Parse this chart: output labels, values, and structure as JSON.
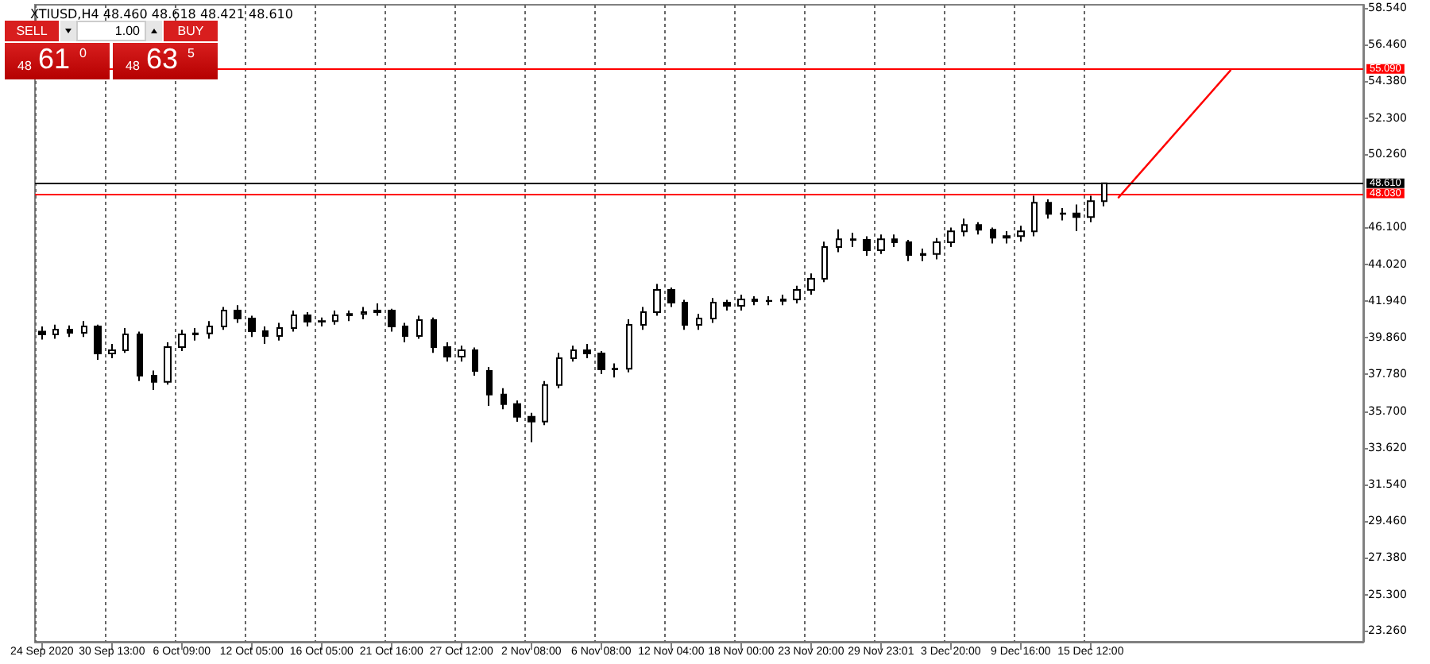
{
  "chart_data": {
    "type": "candlestick",
    "title": "XTIUSD,H4 48.460 48.618 48.421 48.610",
    "annotations": [
      "SELL",
      "1.00",
      "BUY",
      "48",
      "61",
      "0",
      "48",
      "63",
      "5"
    ],
    "categories": [
      "24 Sep 2020",
      null,
      null,
      null,
      null,
      "30 Sep 13:00",
      null,
      null,
      null,
      null,
      "6 Oct 09:00",
      null,
      null,
      null,
      null,
      "12 Oct 05:00",
      null,
      null,
      null,
      null,
      "16 Oct 05:00",
      null,
      null,
      null,
      null,
      "21 Oct 16:00",
      null,
      null,
      null,
      null,
      "27 Oct 12:00",
      null,
      null,
      null,
      null,
      "2 Nov 08:00",
      null,
      null,
      null,
      null,
      "6 Nov 08:00",
      null,
      null,
      null,
      null,
      "12 Nov 04:00",
      null,
      null,
      null,
      null,
      "18 Nov 00:00",
      null,
      null,
      null,
      null,
      "23 Nov 20:00",
      null,
      null,
      null,
      null,
      "29 Nov 23:01",
      null,
      null,
      null,
      null,
      "3 Dec 20:00",
      null,
      null,
      null,
      null,
      "9 Dec 16:00",
      null,
      null,
      null,
      null,
      "15 Dec 12:00",
      null,
      null,
      null,
      null,
      null,
      null,
      null,
      null,
      null,
      null,
      null,
      null,
      null,
      null,
      null,
      null,
      null,
      null,
      null
    ],
    "series": [
      {
        "type": "candlestick",
        "color": "#000000",
        "ohlc": [
          [
            40.2,
            40.5,
            39.75,
            40.05
          ],
          [
            40.05,
            40.6,
            39.8,
            40.32
          ],
          [
            40.32,
            40.55,
            39.9,
            40.14
          ],
          [
            40.14,
            40.8,
            39.9,
            40.5
          ],
          [
            40.5,
            40.6,
            38.6,
            38.97
          ],
          [
            38.97,
            39.5,
            38.7,
            39.15
          ],
          [
            39.15,
            40.4,
            39.0,
            40.05
          ],
          [
            40.05,
            40.2,
            37.4,
            37.71
          ],
          [
            37.71,
            38.0,
            36.9,
            37.36
          ],
          [
            37.36,
            39.6,
            37.2,
            39.33
          ],
          [
            39.33,
            40.3,
            39.1,
            40.05
          ],
          [
            40.05,
            40.4,
            39.7,
            40.1
          ],
          [
            40.1,
            40.8,
            39.8,
            40.5
          ],
          [
            40.5,
            41.6,
            40.3,
            41.4
          ],
          [
            41.4,
            41.7,
            40.7,
            40.95
          ],
          [
            40.95,
            41.1,
            39.9,
            40.23
          ],
          [
            40.23,
            40.5,
            39.5,
            39.96
          ],
          [
            39.96,
            40.7,
            39.7,
            40.41
          ],
          [
            40.41,
            41.4,
            40.2,
            41.13
          ],
          [
            41.13,
            41.3,
            40.5,
            40.77
          ],
          [
            40.77,
            41.0,
            40.5,
            40.8
          ],
          [
            40.8,
            41.4,
            40.6,
            41.13
          ],
          [
            41.13,
            41.4,
            40.8,
            41.2
          ],
          [
            41.2,
            41.6,
            40.9,
            41.31
          ],
          [
            41.31,
            41.8,
            41.1,
            41.4
          ],
          [
            41.4,
            41.5,
            40.2,
            40.5
          ],
          [
            40.5,
            40.7,
            39.6,
            39.96
          ],
          [
            39.96,
            41.1,
            39.8,
            40.86
          ],
          [
            40.86,
            41.0,
            39.0,
            39.33
          ],
          [
            39.33,
            39.6,
            38.5,
            38.79
          ],
          [
            38.79,
            39.4,
            38.5,
            39.15
          ],
          [
            39.15,
            39.3,
            37.7,
            37.98
          ],
          [
            37.98,
            38.2,
            36.0,
            36.64
          ],
          [
            36.64,
            37.0,
            35.8,
            36.1
          ],
          [
            36.1,
            36.3,
            35.1,
            35.38
          ],
          [
            35.38,
            35.6,
            33.94,
            35.11
          ],
          [
            35.11,
            37.4,
            34.9,
            37.18
          ],
          [
            37.18,
            39.0,
            37.0,
            38.7
          ],
          [
            38.7,
            39.4,
            38.5,
            39.15
          ],
          [
            39.15,
            39.5,
            38.7,
            38.97
          ],
          [
            38.97,
            39.1,
            37.8,
            38.07
          ],
          [
            38.07,
            38.4,
            37.6,
            38.1
          ],
          [
            38.1,
            40.9,
            37.9,
            40.59
          ],
          [
            40.59,
            41.6,
            40.3,
            41.31
          ],
          [
            41.31,
            42.9,
            41.1,
            42.56
          ],
          [
            42.56,
            42.7,
            41.6,
            41.84
          ],
          [
            41.84,
            42.0,
            40.3,
            40.59
          ],
          [
            40.59,
            41.2,
            40.3,
            40.95
          ],
          [
            40.95,
            42.1,
            40.7,
            41.84
          ],
          [
            41.84,
            42.0,
            41.4,
            41.66
          ],
          [
            41.66,
            42.3,
            41.4,
            42.02
          ],
          [
            42.02,
            42.2,
            41.7,
            41.93
          ],
          [
            41.93,
            42.2,
            41.7,
            41.95
          ],
          [
            41.95,
            42.3,
            41.7,
            42.02
          ],
          [
            42.02,
            42.8,
            41.8,
            42.56
          ],
          [
            42.56,
            43.5,
            42.3,
            43.19
          ],
          [
            43.19,
            45.3,
            43.0,
            44.99
          ],
          [
            44.99,
            46.0,
            44.7,
            45.43
          ],
          [
            45.43,
            45.8,
            45.0,
            45.4
          ],
          [
            45.4,
            45.6,
            44.5,
            44.81
          ],
          [
            44.81,
            45.7,
            44.6,
            45.43
          ],
          [
            45.43,
            45.7,
            45.0,
            45.26
          ],
          [
            45.26,
            45.4,
            44.2,
            44.54
          ],
          [
            44.54,
            44.9,
            44.2,
            44.6
          ],
          [
            44.6,
            45.5,
            44.3,
            45.26
          ],
          [
            45.26,
            46.1,
            45.0,
            45.88
          ],
          [
            45.88,
            46.6,
            45.6,
            46.24
          ],
          [
            46.24,
            46.4,
            45.7,
            45.97
          ],
          [
            45.97,
            46.1,
            45.2,
            45.52
          ],
          [
            45.52,
            45.9,
            45.2,
            45.61
          ],
          [
            45.61,
            46.2,
            45.3,
            45.88
          ],
          [
            45.88,
            47.9,
            45.6,
            47.5
          ],
          [
            47.5,
            47.7,
            46.6,
            46.87
          ],
          [
            46.87,
            47.2,
            46.5,
            46.9
          ],
          [
            46.9,
            47.4,
            45.9,
            46.69
          ],
          [
            46.69,
            47.9,
            46.4,
            47.59
          ],
          [
            47.59,
            48.618,
            47.3,
            48.61
          ],
          null,
          null,
          null,
          null,
          null,
          null,
          null,
          null,
          null,
          null,
          null,
          null,
          null,
          null,
          null,
          null,
          null,
          null
        ]
      },
      {
        "type": "line",
        "color": "#ff0000",
        "values": [
          null,
          null,
          null,
          null,
          null,
          null,
          null,
          null,
          null,
          null,
          null,
          null,
          null,
          null,
          null,
          null,
          null,
          null,
          null,
          null,
          null,
          null,
          null,
          null,
          null,
          null,
          null,
          null,
          null,
          null,
          null,
          null,
          null,
          null,
          null,
          null,
          null,
          null,
          null,
          null,
          null,
          null,
          null,
          null,
          null,
          null,
          null,
          null,
          null,
          null,
          null,
          null,
          null,
          null,
          null,
          null,
          null,
          null,
          null,
          null,
          null,
          null,
          null,
          null,
          null,
          null,
          null,
          null,
          null,
          null,
          null,
          null,
          null,
          null,
          null,
          null,
          null,
          47.8,
          null,
          null,
          null,
          null,
          null,
          null,
          null,
          55.0,
          null,
          null,
          null,
          null,
          null,
          null,
          null,
          null,
          null
        ]
      }
    ],
    "ylim": [
      22.63,
      58.72
    ],
    "yticks": [
      {
        "value": 58.54,
        "label": "58.540"
      },
      {
        "value": 56.46,
        "label": "56.460"
      },
      {
        "value": 54.38,
        "label": "54.380"
      },
      {
        "value": 52.3,
        "label": "52.300"
      },
      {
        "value": 50.26,
        "label": "50.260"
      },
      {
        "value": 46.1,
        "label": "46.100"
      },
      {
        "value": 44.02,
        "label": "44.020"
      },
      {
        "value": 41.94,
        "label": "41.940"
      },
      {
        "value": 39.86,
        "label": "39.860"
      },
      {
        "value": 37.78,
        "label": "37.780"
      },
      {
        "value": 35.7,
        "label": "35.700"
      },
      {
        "value": 33.62,
        "label": "33.620"
      },
      {
        "value": 31.54,
        "label": "31.540"
      },
      {
        "value": 29.46,
        "label": "29.460"
      },
      {
        "value": 27.38,
        "label": "27.380"
      },
      {
        "value": 25.3,
        "label": "25.300"
      },
      {
        "value": 23.26,
        "label": "23.260"
      }
    ],
    "ref_lines": [
      {
        "axis": "y",
        "value": 55.09,
        "label": "55.090",
        "color": "#ff0000"
      },
      {
        "axis": "y",
        "value": 48.03,
        "label": "48.030",
        "color": "#ff0000"
      },
      {
        "axis": "y",
        "value": 48.61,
        "label": "48.610",
        "color": "#000000"
      }
    ],
    "grid": "x"
  }
}
